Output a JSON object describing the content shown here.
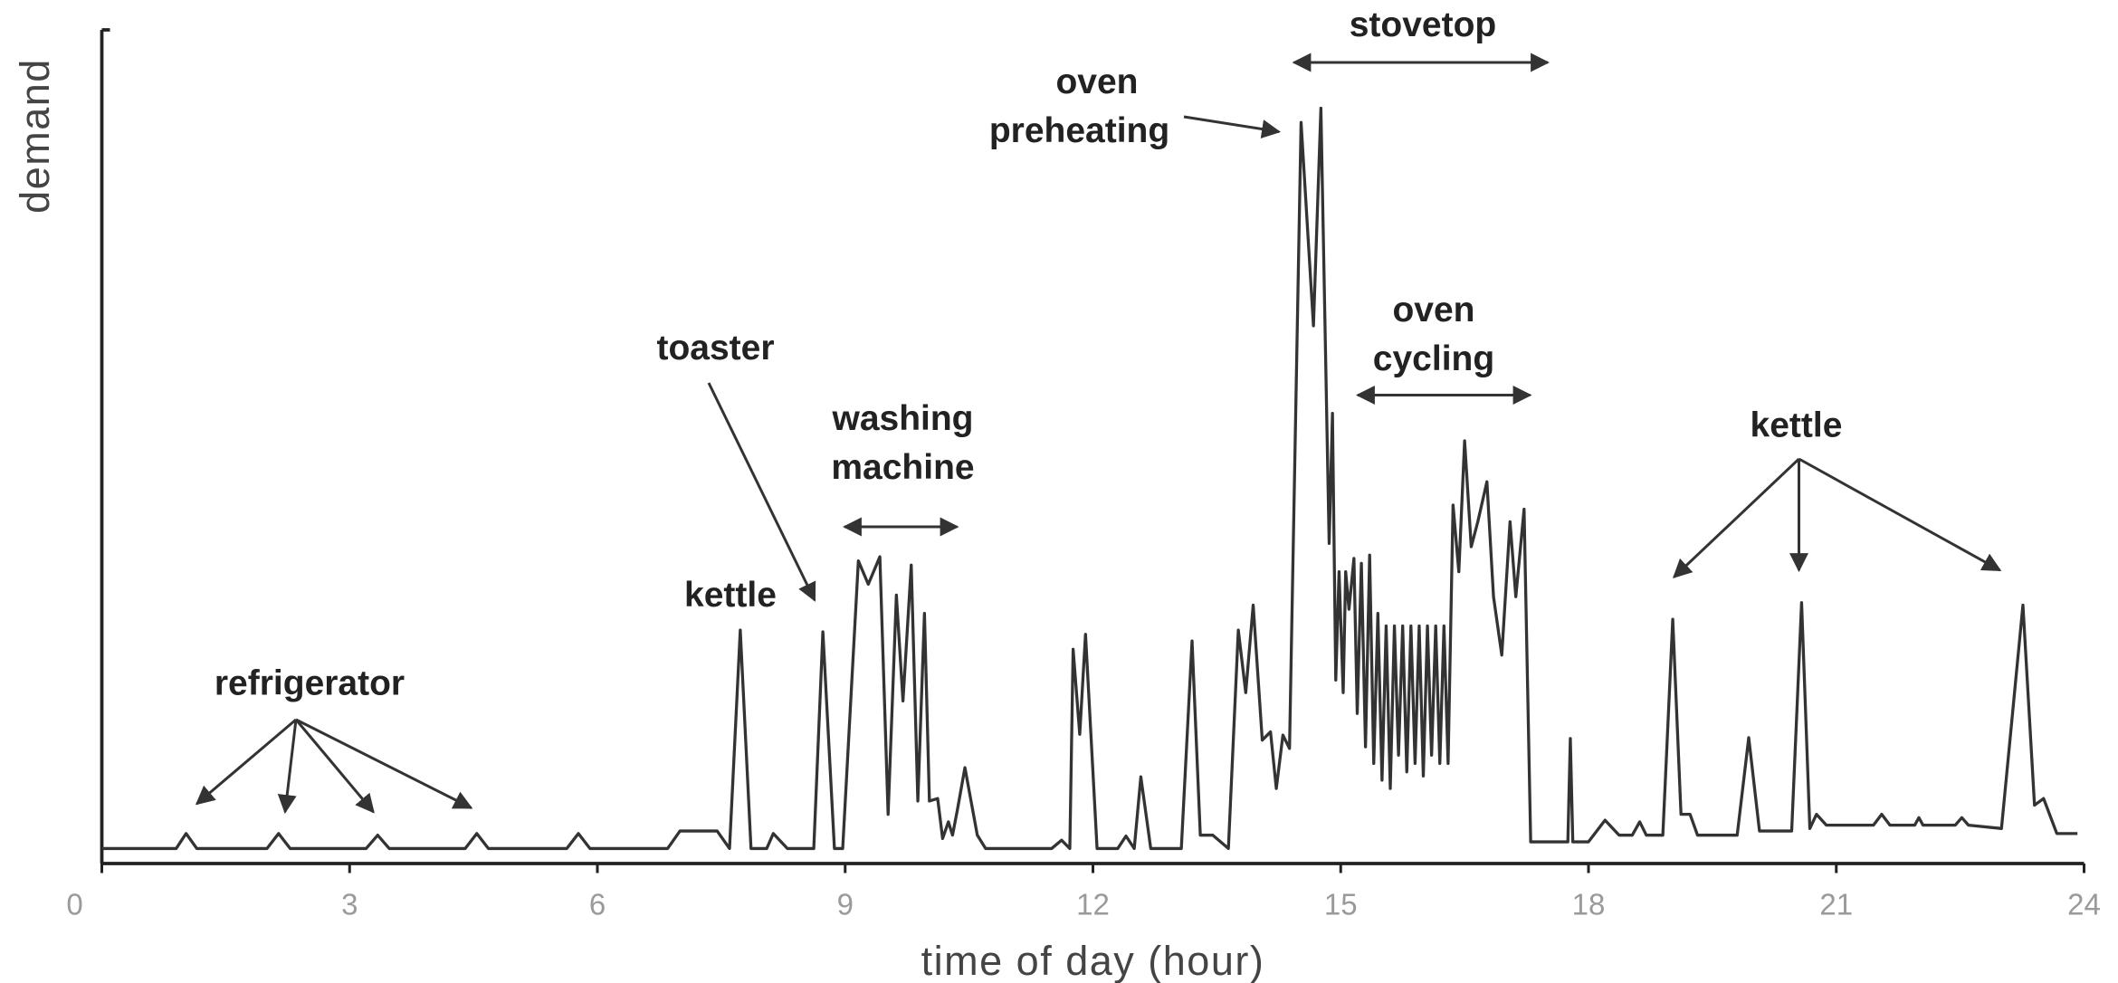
{
  "chart_data": {
    "type": "line",
    "x_label": "time of day (hour)",
    "y_label": "demand",
    "xlim": [
      0,
      24
    ],
    "xticks": [
      0,
      3,
      6,
      9,
      12,
      15,
      18,
      21,
      24
    ],
    "ylim": [
      0,
      100
    ],
    "color": "#333333",
    "grid": false,
    "x": [
      0,
      0.9,
      1.02,
      1.15,
      2.0,
      2.14,
      2.28,
      3.2,
      3.34,
      3.48,
      4.4,
      4.54,
      4.68,
      5.63,
      5.77,
      5.91,
      6.85,
      7.0,
      7.45,
      7.6,
      7.73,
      7.86,
      8.05,
      8.13,
      8.3,
      8.62,
      8.73,
      8.87,
      8.97,
      9.16,
      9.28,
      9.42,
      9.52,
      9.62,
      9.7,
      9.8,
      9.88,
      9.96,
      10.02,
      10.12,
      10.18,
      10.25,
      10.3,
      10.36,
      10.45,
      10.6,
      10.7,
      11.5,
      11.62,
      11.72,
      11.76,
      11.84,
      11.91,
      12.05,
      12.3,
      12.4,
      12.5,
      12.58,
      12.7,
      13.07,
      13.2,
      13.3,
      13.45,
      13.64,
      13.76,
      13.85,
      13.94,
      14.05,
      14.15,
      14.22,
      14.3,
      14.38,
      14.52,
      14.67,
      14.76,
      14.86,
      14.9,
      14.94,
      14.98,
      15.03,
      15.06,
      15.1,
      15.16,
      15.2,
      15.25,
      15.3,
      15.35,
      15.4,
      15.45,
      15.5,
      15.55,
      15.6,
      15.65,
      15.7,
      15.75,
      15.8,
      15.85,
      15.9,
      15.95,
      16.0,
      16.05,
      16.1,
      16.15,
      16.2,
      16.25,
      16.3,
      16.36,
      16.43,
      16.5,
      16.58,
      16.66,
      16.77,
      16.85,
      16.95,
      17.05,
      17.12,
      17.22,
      17.3,
      17.75,
      17.78,
      17.81,
      18.0,
      18.2,
      18.37,
      18.53,
      18.62,
      18.7,
      18.9,
      19.02,
      19.12,
      19.23,
      19.32,
      19.8,
      19.94,
      20.07,
      20.46,
      20.58,
      20.68,
      20.76,
      20.88,
      21.45,
      21.55,
      21.65,
      21.95,
      22.0,
      22.05,
      22.44,
      22.52,
      22.6,
      23.0,
      23.26,
      23.4,
      23.51,
      23.67,
      23.92
    ],
    "values": [
      1.8,
      1.8,
      3.6,
      1.8,
      1.8,
      3.6,
      1.8,
      1.8,
      3.4,
      1.8,
      1.8,
      3.6,
      1.8,
      1.8,
      3.6,
      1.8,
      1.8,
      3.9,
      3.9,
      1.8,
      28,
      1.8,
      1.8,
      3.6,
      1.8,
      1.8,
      27.8,
      1.8,
      1.8,
      36.3,
      33.5,
      36.8,
      5.9,
      32.2,
      19.5,
      35.8,
      7.5,
      30,
      7.5,
      7.8,
      3,
      5,
      3.4,
      6.5,
      11.5,
      3.4,
      1.8,
      1.8,
      2.8,
      1.8,
      25.7,
      15.5,
      27.5,
      1.8,
      1.8,
      3.3,
      1.8,
      10.4,
      1.8,
      1.8,
      26.7,
      3.4,
      3.4,
      1.8,
      28,
      20.5,
      31,
      14.8,
      15.8,
      9,
      15.4,
      13.8,
      88.9,
      64.5,
      90.6,
      38.4,
      54,
      22,
      35,
      20.5,
      35,
      30.5,
      36.6,
      18,
      36,
      14,
      37,
      12,
      30,
      10,
      28.5,
      9,
      28.5,
      13,
      28.5,
      11,
      28.5,
      12,
      28.5,
      10.5,
      28.5,
      13,
      28.5,
      12,
      28.5,
      12,
      43,
      35,
      50.7,
      38,
      41,
      45.8,
      32,
      25,
      41,
      32,
      42.5,
      2.6,
      2.6,
      15,
      2.6,
      2.6,
      5.2,
      3.4,
      3.4,
      5,
      3.4,
      3.4,
      29.3,
      5.9,
      5.9,
      3.4,
      3.4,
      15.1,
      3.9,
      3.9,
      31.3,
      4.2,
      5.9,
      4.6,
      4.6,
      5.9,
      4.6,
      4.6,
      5.5,
      4.6,
      4.6,
      5.5,
      4.6,
      4.2,
      31,
      7,
      7.8,
      3.6,
      3.6
    ],
    "annotations": [
      {
        "text": [
          "refrigerator"
        ]
      },
      {
        "text": [
          "kettle"
        ]
      },
      {
        "text": [
          "toaster"
        ]
      },
      {
        "text": [
          "washing",
          "machine"
        ]
      },
      {
        "text": [
          "oven",
          "preheating"
        ]
      },
      {
        "text": [
          "stovetop"
        ]
      },
      {
        "text": [
          "oven",
          "cycling"
        ]
      },
      {
        "text": [
          "kettle"
        ]
      }
    ]
  }
}
